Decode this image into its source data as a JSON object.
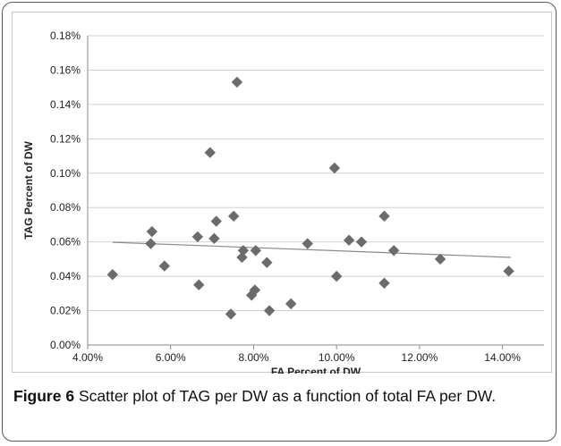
{
  "figure": {
    "caption_label": "Figure 6",
    "caption_text": " Scatter plot of TAG per DW as a function of total FA per DW."
  },
  "chart_data": {
    "type": "scatter",
    "xlabel": "FA Percent of DW",
    "ylabel": "TAG Percent of DW",
    "xlim": [
      4.0,
      15.0
    ],
    "ylim": [
      0.0,
      0.18
    ],
    "x_ticks": [
      4,
      6,
      8,
      10,
      12,
      14
    ],
    "x_tick_labels": [
      "4.00%",
      "6.00%",
      "8.00%",
      "10.00%",
      "12.00%",
      "14.00%"
    ],
    "y_ticks": [
      0,
      0.02,
      0.04,
      0.06,
      0.08,
      0.1,
      0.12,
      0.14,
      0.16,
      0.18
    ],
    "y_tick_labels": [
      "0.00%",
      "0.02%",
      "0.04%",
      "0.06%",
      "0.08%",
      "0.10%",
      "0.12%",
      "0.14%",
      "0.16%",
      "0.18%"
    ],
    "grid": "horizontal",
    "marker": "diamond",
    "marker_color": "#6b6b6b",
    "trendline": {
      "x": [
        4.6,
        14.2
      ],
      "y": [
        0.0598,
        0.051
      ],
      "color": "#8a8a8a"
    },
    "points": [
      {
        "x": 4.6,
        "y": 0.041
      },
      {
        "x": 5.52,
        "y": 0.059
      },
      {
        "x": 5.55,
        "y": 0.066
      },
      {
        "x": 5.85,
        "y": 0.046
      },
      {
        "x": 6.65,
        "y": 0.063
      },
      {
        "x": 6.68,
        "y": 0.035
      },
      {
        "x": 6.95,
        "y": 0.112
      },
      {
        "x": 7.05,
        "y": 0.062
      },
      {
        "x": 7.1,
        "y": 0.072
      },
      {
        "x": 7.45,
        "y": 0.018
      },
      {
        "x": 7.52,
        "y": 0.075
      },
      {
        "x": 7.6,
        "y": 0.153
      },
      {
        "x": 7.72,
        "y": 0.051
      },
      {
        "x": 7.75,
        "y": 0.055
      },
      {
        "x": 7.95,
        "y": 0.029
      },
      {
        "x": 8.03,
        "y": 0.032
      },
      {
        "x": 8.05,
        "y": 0.055
      },
      {
        "x": 8.32,
        "y": 0.048
      },
      {
        "x": 8.38,
        "y": 0.02
      },
      {
        "x": 8.9,
        "y": 0.024
      },
      {
        "x": 9.3,
        "y": 0.059
      },
      {
        "x": 9.95,
        "y": 0.103
      },
      {
        "x": 10.0,
        "y": 0.04
      },
      {
        "x": 10.3,
        "y": 0.061
      },
      {
        "x": 10.6,
        "y": 0.06
      },
      {
        "x": 11.15,
        "y": 0.075
      },
      {
        "x": 11.15,
        "y": 0.036
      },
      {
        "x": 11.38,
        "y": 0.055
      },
      {
        "x": 12.5,
        "y": 0.05
      },
      {
        "x": 14.15,
        "y": 0.043
      }
    ]
  }
}
